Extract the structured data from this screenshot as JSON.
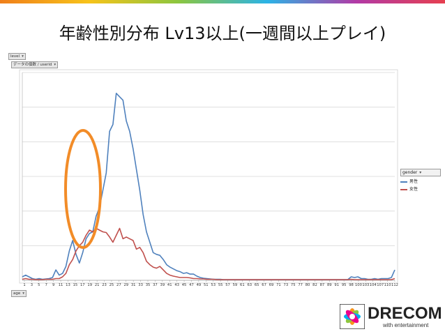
{
  "page": {
    "title": "年齢性別分布 Lv13以上(一週間以上プレイ)"
  },
  "pivot": {
    "filter_chip": "level",
    "values_chip": "データの個数 / userid",
    "axis_chip": "age",
    "legend_header": "gender"
  },
  "legend": {
    "items": [
      {
        "label": "男性",
        "color": "#4f81bd"
      },
      {
        "label": "女性",
        "color": "#c0504d"
      }
    ]
  },
  "logo": {
    "text": "DRECOM",
    "sub": "with entertainment"
  },
  "chart_data": {
    "type": "line",
    "x": [
      1,
      2,
      3,
      4,
      5,
      6,
      7,
      8,
      9,
      10,
      11,
      12,
      13,
      14,
      15,
      16,
      17,
      18,
      19,
      20,
      21,
      22,
      23,
      24,
      25,
      26,
      27,
      28,
      29,
      30,
      31,
      32,
      33,
      34,
      35,
      36,
      37,
      38,
      39,
      40,
      41,
      42,
      43,
      44,
      45,
      46,
      47,
      48,
      49,
      50,
      51,
      52,
      53,
      54,
      55,
      56,
      57,
      58,
      59,
      60,
      61,
      62,
      63,
      64,
      65,
      66,
      67,
      68,
      69,
      70,
      71,
      72,
      73,
      74,
      75,
      76,
      77,
      78,
      79,
      80,
      81,
      82,
      83,
      84,
      85,
      86,
      87,
      88,
      89,
      90,
      91,
      92,
      93,
      94,
      95,
      96,
      97,
      98,
      99,
      100,
      101,
      102,
      103,
      104,
      105,
      106,
      107,
      108,
      109,
      110,
      111,
      112
    ],
    "x_tick_labels": [
      "1",
      "3",
      "5",
      "7",
      "9",
      "11",
      "13",
      "15",
      "17",
      "19",
      "21",
      "23",
      "25",
      "27",
      "29",
      "31",
      "33",
      "35",
      "37",
      "39",
      "41",
      "43",
      "45",
      "47",
      "49",
      "51",
      "53",
      "55",
      "57",
      "59",
      "61",
      "63",
      "65",
      "67",
      "69",
      "71",
      "73",
      "75",
      "77",
      "80",
      "82",
      "87",
      "89",
      "91",
      "95",
      "98",
      "100",
      "103",
      "104",
      "107",
      "110",
      "112"
    ],
    "ylim": [
      0,
      600
    ],
    "grid": true,
    "legend_position": "right",
    "series": [
      {
        "name": "男性",
        "color": "#4f81bd",
        "values": [
          10,
          15,
          10,
          5,
          3,
          5,
          3,
          4,
          5,
          8,
          30,
          15,
          20,
          40,
          85,
          115,
          75,
          50,
          80,
          120,
          135,
          140,
          185,
          210,
          260,
          310,
          430,
          450,
          540,
          530,
          520,
          460,
          430,
          380,
          320,
          260,
          190,
          140,
          110,
          80,
          75,
          72,
          60,
          45,
          38,
          33,
          28,
          25,
          20,
          22,
          18,
          18,
          12,
          8,
          6,
          5,
          4,
          3,
          3,
          3,
          2,
          2,
          2,
          2,
          2,
          2,
          2,
          2,
          2,
          2,
          2,
          2,
          2,
          2,
          2,
          2,
          2,
          2,
          2,
          2,
          2,
          2,
          2,
          2,
          2,
          2,
          2,
          2,
          2,
          2,
          2,
          2,
          2,
          2,
          2,
          2,
          2,
          2,
          10,
          8,
          10,
          5,
          5,
          3,
          3,
          5,
          3,
          5,
          5,
          5,
          8,
          30
        ]
      },
      {
        "name": "女性",
        "color": "#c0504d",
        "values": [
          3,
          5,
          3,
          3,
          2,
          2,
          2,
          3,
          3,
          3,
          5,
          5,
          10,
          20,
          45,
          60,
          85,
          100,
          110,
          130,
          145,
          140,
          150,
          145,
          140,
          138,
          125,
          110,
          130,
          150,
          120,
          125,
          120,
          115,
          90,
          95,
          80,
          55,
          45,
          38,
          35,
          40,
          30,
          20,
          15,
          12,
          10,
          8,
          8,
          8,
          7,
          5,
          5,
          4,
          4,
          3,
          3,
          3,
          2,
          2,
          2,
          2,
          2,
          2,
          2,
          2,
          2,
          2,
          2,
          2,
          2,
          2,
          2,
          2,
          2,
          2,
          2,
          2,
          2,
          2,
          2,
          2,
          2,
          2,
          2,
          2,
          2,
          2,
          2,
          2,
          2,
          2,
          2,
          2,
          2,
          2,
          2,
          2,
          3,
          2,
          2,
          2,
          2,
          2,
          2,
          2,
          2,
          2,
          2,
          2,
          2,
          5
        ]
      }
    ]
  }
}
